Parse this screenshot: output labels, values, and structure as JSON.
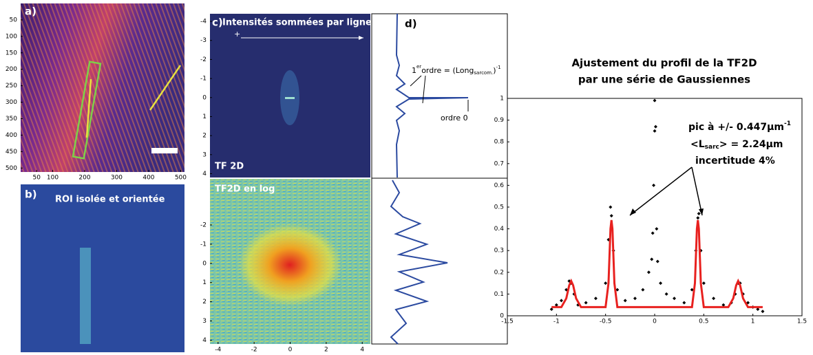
{
  "chart_data": [
    {
      "type": "image",
      "label": "a)",
      "xlim": [
        0,
        512
      ],
      "ylim": [
        0,
        512
      ],
      "xticks": [
        50,
        100,
        200,
        300,
        400,
        500
      ],
      "yticks": [
        50,
        100,
        150,
        200,
        250,
        300,
        350,
        400,
        450,
        500
      ]
    },
    {
      "type": "image",
      "label": "b)",
      "caption": "ROI isolée et orientée"
    },
    {
      "type": "image",
      "label": "c)",
      "title": "Intensités sommées par ligne",
      "direction": "+",
      "caption": "TF 2D",
      "ylim": [
        -4.4,
        4.2
      ],
      "yticks": [
        -4,
        -3,
        -2,
        -1,
        0,
        1,
        2,
        3,
        4
      ]
    },
    {
      "type": "image",
      "caption": "TF2D en log",
      "xlim": [
        -4.45,
        4.45
      ],
      "ylim": [
        -4.4,
        4.2
      ],
      "xticks": [
        -4,
        -2,
        0,
        2,
        4
      ],
      "yticks": [
        -2,
        -1,
        0,
        1,
        2,
        3,
        4
      ]
    },
    {
      "type": "profile",
      "label": "d)",
      "annotations": [
        [
          "1",
          "er",
          "ordre = (Long",
          "sarcom.",
          ")",
          "-1"
        ],
        [
          "ordre 0"
        ]
      ]
    },
    {
      "type": "scatter",
      "title": [
        "Ajustement du profil de la TF2D",
        "par une série de Gaussiennes"
      ],
      "xlim": [
        -1.5,
        1.5
      ],
      "ylim": [
        0,
        1
      ],
      "xticks": [
        -1.5,
        -1,
        -0.5,
        0,
        0.5,
        1,
        1.5
      ],
      "yticks": [
        0,
        0.1,
        0.2,
        0.3,
        0.4,
        0.5,
        0.6,
        0.7,
        0.8,
        0.9,
        1
      ],
      "annotations": [
        [
          "pic à +/- 0.447µm",
          "-1"
        ],
        [
          "<L",
          "sarc",
          "> = 2.24µm"
        ],
        [
          "incertitude 4%"
        ]
      ],
      "series": [
        {
          "color": "#000000",
          "marker": "diamond",
          "x": [
            -1.05,
            -1.0,
            -0.95,
            -0.9,
            -0.87,
            -0.85,
            -0.82,
            -0.78,
            -0.7,
            -0.6,
            -0.5,
            -0.47,
            -0.45,
            -0.44,
            -0.42,
            -0.38,
            -0.3,
            -0.2,
            -0.12,
            -0.06,
            -0.03,
            -0.02,
            -0.01,
            0,
            0,
            0.01,
            0.02,
            0.03,
            0.06,
            0.12,
            0.2,
            0.3,
            0.38,
            0.42,
            0.44,
            0.45,
            0.47,
            0.5,
            0.6,
            0.7,
            0.78,
            0.82,
            0.85,
            0.87,
            0.9,
            0.95,
            1.0,
            1.05,
            1.1
          ],
          "values": [
            0.03,
            0.05,
            0.07,
            0.12,
            0.16,
            0.15,
            0.1,
            0.05,
            0.06,
            0.08,
            0.15,
            0.35,
            0.5,
            0.46,
            0.3,
            0.12,
            0.07,
            0.08,
            0.12,
            0.2,
            0.26,
            0.38,
            0.6,
            0.99,
            0.85,
            0.87,
            0.4,
            0.25,
            0.15,
            0.1,
            0.08,
            0.06,
            0.12,
            0.3,
            0.45,
            0.47,
            0.3,
            0.15,
            0.08,
            0.05,
            0.06,
            0.1,
            0.15,
            0.15,
            0.1,
            0.06,
            0.04,
            0.03,
            0.02
          ]
        },
        {
          "color": "#e8211f",
          "marker": "line",
          "x": [
            -1.05,
            -0.95,
            -0.9,
            -0.87,
            -0.85,
            -0.83,
            -0.8,
            -0.75,
            -0.6,
            -0.5,
            -0.47,
            -0.45,
            -0.44,
            -0.43,
            -0.41,
            -0.38,
            -0.3,
            0,
            0.3,
            0.38,
            0.41,
            0.43,
            0.44,
            0.45,
            0.47,
            0.5,
            0.6,
            0.75,
            0.8,
            0.83,
            0.85,
            0.87,
            0.9,
            0.95,
            1.1
          ],
          "values": [
            0.04,
            0.04,
            0.08,
            0.14,
            0.16,
            0.14,
            0.08,
            0.04,
            0.04,
            0.04,
            0.15,
            0.4,
            0.44,
            0.4,
            0.15,
            0.04,
            0.04,
            0.04,
            0.04,
            0.04,
            0.15,
            0.4,
            0.44,
            0.4,
            0.15,
            0.04,
            0.04,
            0.04,
            0.08,
            0.14,
            0.16,
            0.14,
            0.08,
            0.04,
            0.04
          ]
        }
      ]
    }
  ]
}
